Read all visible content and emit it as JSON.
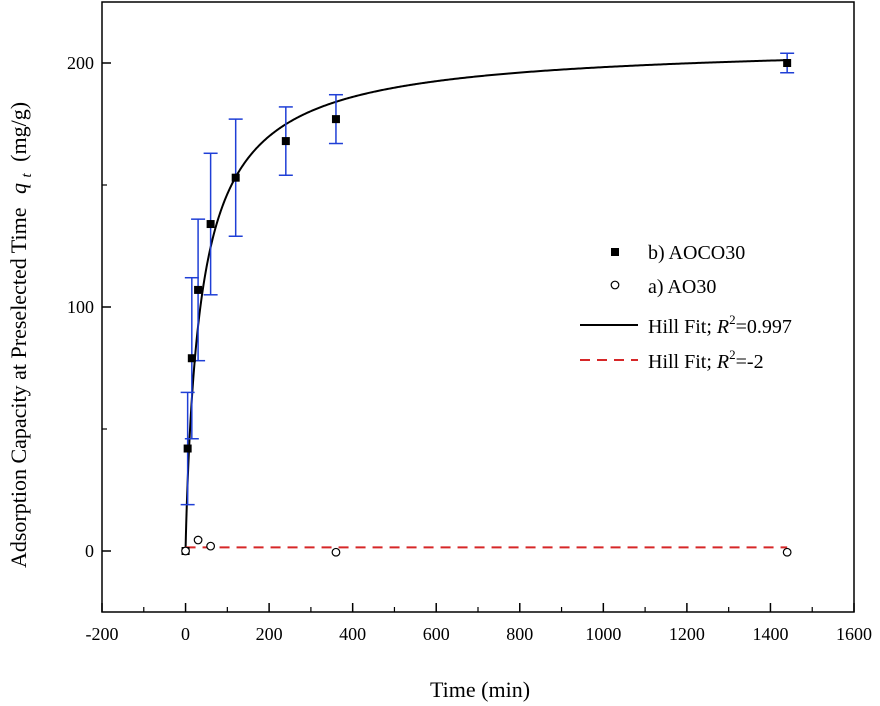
{
  "chart_data": {
    "type": "scatter",
    "xlabel": "Time (min)",
    "ylabel": {
      "main": "Adsorption Capacity at Preselected Time",
      "symbol": "q",
      "subscript": "t",
      "unit": "(mg/g)"
    },
    "xlim": [
      -200,
      1600
    ],
    "ylim": [
      -25,
      225
    ],
    "x_ticks": [
      -200,
      0,
      200,
      400,
      600,
      800,
      1000,
      1200,
      1400,
      1600
    ],
    "y_ticks": [
      0,
      100,
      200
    ],
    "x_tick_labels": [
      "-200",
      "0",
      "200",
      "400",
      "600",
      "800",
      "1000",
      "1200",
      "1400",
      "1600"
    ],
    "y_tick_labels": [
      "0",
      "100",
      "200"
    ],
    "grid": false,
    "legend_position": "right-middle",
    "series": [
      {
        "name": "b) AOCO30",
        "marker": "filled-square",
        "color": "#000000",
        "errorbar_color": "#1f3fd6",
        "points": [
          {
            "x": 0,
            "y": 0,
            "err": 0
          },
          {
            "x": 5,
            "y": 42,
            "err": 23
          },
          {
            "x": 15,
            "y": 79,
            "err": 33
          },
          {
            "x": 30,
            "y": 107,
            "err": 29
          },
          {
            "x": 60,
            "y": 134,
            "err": 29
          },
          {
            "x": 120,
            "y": 153,
            "err": 24
          },
          {
            "x": 240,
            "y": 168,
            "err": 14
          },
          {
            "x": 360,
            "y": 177,
            "err": 10
          },
          {
            "x": 1440,
            "y": 200,
            "err": 4
          }
        ]
      },
      {
        "name": "a) AO30",
        "marker": "open-circle",
        "color": "#000000",
        "points": [
          {
            "x": 0,
            "y": 0
          },
          {
            "x": 30,
            "y": 4.5
          },
          {
            "x": 60,
            "y": 2
          },
          {
            "x": 360,
            "y": -0.5
          },
          {
            "x": 1440,
            "y": -0.5
          }
        ]
      }
    ],
    "fits": [
      {
        "label_prefix": "Hill Fit; ",
        "r_symbol": "R",
        "r_exp": "2",
        "r_value": "=0.997",
        "style": "solid",
        "color": "#000000",
        "model": {
          "qmax": 209,
          "K": 39,
          "n": 0.9,
          "x_end": 1440
        }
      },
      {
        "label_prefix": "Hill Fit; ",
        "r_symbol": "R",
        "r_exp": "2",
        "r_value": "=-2",
        "style": "dashed",
        "color": "#d62728",
        "model": {
          "constant": 1.5,
          "x_start": 0,
          "x_end": 1440
        }
      }
    ]
  }
}
